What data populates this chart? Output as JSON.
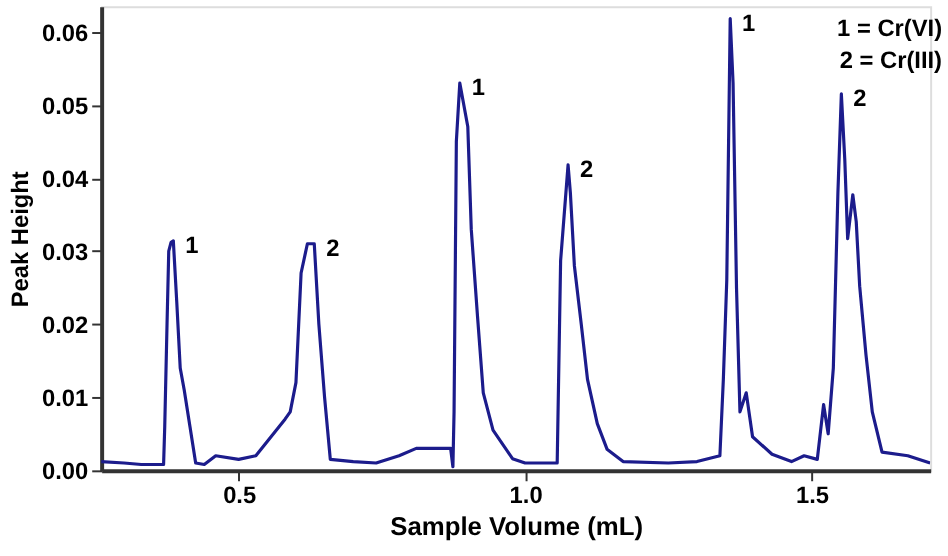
{
  "chart_data": {
    "type": "line",
    "xlabel": "Sample Volume (mL)",
    "ylabel": "Peak Height",
    "xlim": [
      0.26,
      1.707
    ],
    "ylim": [
      0,
      0.0635
    ],
    "xticks": [
      0.5,
      {
        "value": 1,
        "label": "1.0"
      },
      1.5
    ],
    "yticks": [
      {
        "value": 0,
        "label": "0.00"
      },
      0.01,
      0.02,
      0.03,
      0.04,
      0.05,
      0.06
    ],
    "grid": false,
    "marker": "none",
    "line_style": "solid",
    "series": [
      {
        "color": "#1c1c8c",
        "x": [
          0.26,
          0.3,
          0.33,
          0.369,
          0.371,
          0.375,
          0.378,
          0.382,
          0.386,
          0.392,
          0.398,
          0.405,
          0.415,
          0.425,
          0.44,
          0.46,
          0.5,
          0.53,
          0.581,
          0.59,
          0.6,
          0.609,
          0.62,
          0.632,
          0.64,
          0.65,
          0.66,
          0.7,
          0.74,
          0.78,
          0.81,
          0.87,
          0.874,
          0.876,
          0.88,
          0.886,
          0.9,
          0.906,
          0.917,
          0.927,
          0.944,
          0.978,
          1.0,
          1.056,
          1.062,
          1.075,
          1.079,
          1.086,
          1.098,
          1.109,
          1.126,
          1.143,
          1.171,
          1.25,
          1.3,
          1.34,
          1.346,
          1.352,
          1.358,
          1.363,
          1.369,
          1.375,
          1.386,
          1.397,
          1.431,
          1.465,
          1.487,
          1.51,
          1.521,
          1.529,
          1.538,
          1.546,
          1.552,
          1.558,
          1.563,
          1.572,
          1.578,
          1.584,
          1.595,
          1.606,
          1.623,
          1.668,
          1.707
        ],
        "values": [
          0.0012,
          0.001,
          0.0008,
          0.0008,
          0.006,
          0.02,
          0.03,
          0.0312,
          0.0314,
          0.023,
          0.014,
          0.011,
          0.006,
          0.001,
          0.0008,
          0.002,
          0.0015,
          0.002,
          0.007,
          0.008,
          0.012,
          0.027,
          0.031,
          0.031,
          0.02,
          0.01,
          0.0015,
          0.0012,
          0.001,
          0.002,
          0.003,
          0.003,
          0.0005,
          0.008,
          0.045,
          0.053,
          0.047,
          0.033,
          0.021,
          0.0106,
          0.0055,
          0.0016,
          0.001,
          0.001,
          0.0287,
          0.0418,
          0.038,
          0.028,
          0.02,
          0.0124,
          0.0064,
          0.0029,
          0.0012,
          0.001,
          0.0012,
          0.002,
          0.0124,
          0.026,
          0.0618,
          0.053,
          0.025,
          0.008,
          0.0106,
          0.0046,
          0.0022,
          0.0012,
          0.002,
          0.0015,
          0.009,
          0.005,
          0.014,
          0.038,
          0.0515,
          0.0425,
          0.0317,
          0.0377,
          0.034,
          0.0252,
          0.0158,
          0.008,
          0.0025,
          0.002,
          0.001
        ]
      }
    ],
    "annotations": [
      {
        "text": "1",
        "x": 0.386,
        "y": 0.0314
      },
      {
        "text": "2",
        "x": 0.632,
        "y": 0.031
      },
      {
        "text": "1",
        "x": 0.886,
        "y": 0.053
      },
      {
        "text": "2",
        "x": 1.075,
        "y": 0.0418
      },
      {
        "text": "1",
        "x": 1.358,
        "y": 0.0618
      },
      {
        "text": "2",
        "x": 1.552,
        "y": 0.0515
      },
      "1 = Cr(VI)",
      "2 = Cr(III)"
    ]
  }
}
